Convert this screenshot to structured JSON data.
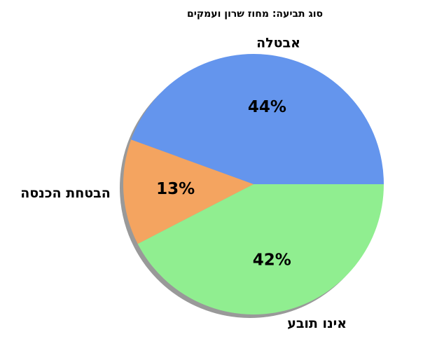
{
  "chart_data": {
    "type": "pie",
    "title": "סוג תביעה: מחוז שרון ועמקים",
    "categories": [
      "אבטלה",
      "הבטחת הכנסה",
      "אינו תובע"
    ],
    "values": [
      44,
      13,
      42
    ],
    "value_labels": [
      "44%",
      "13%",
      "42%"
    ],
    "colors": [
      "#6495ED",
      "#F4A460",
      "#90EE90"
    ],
    "start_angle_deg": 0,
    "direction": "counterclockwise",
    "shadow": true,
    "legend": "none"
  }
}
